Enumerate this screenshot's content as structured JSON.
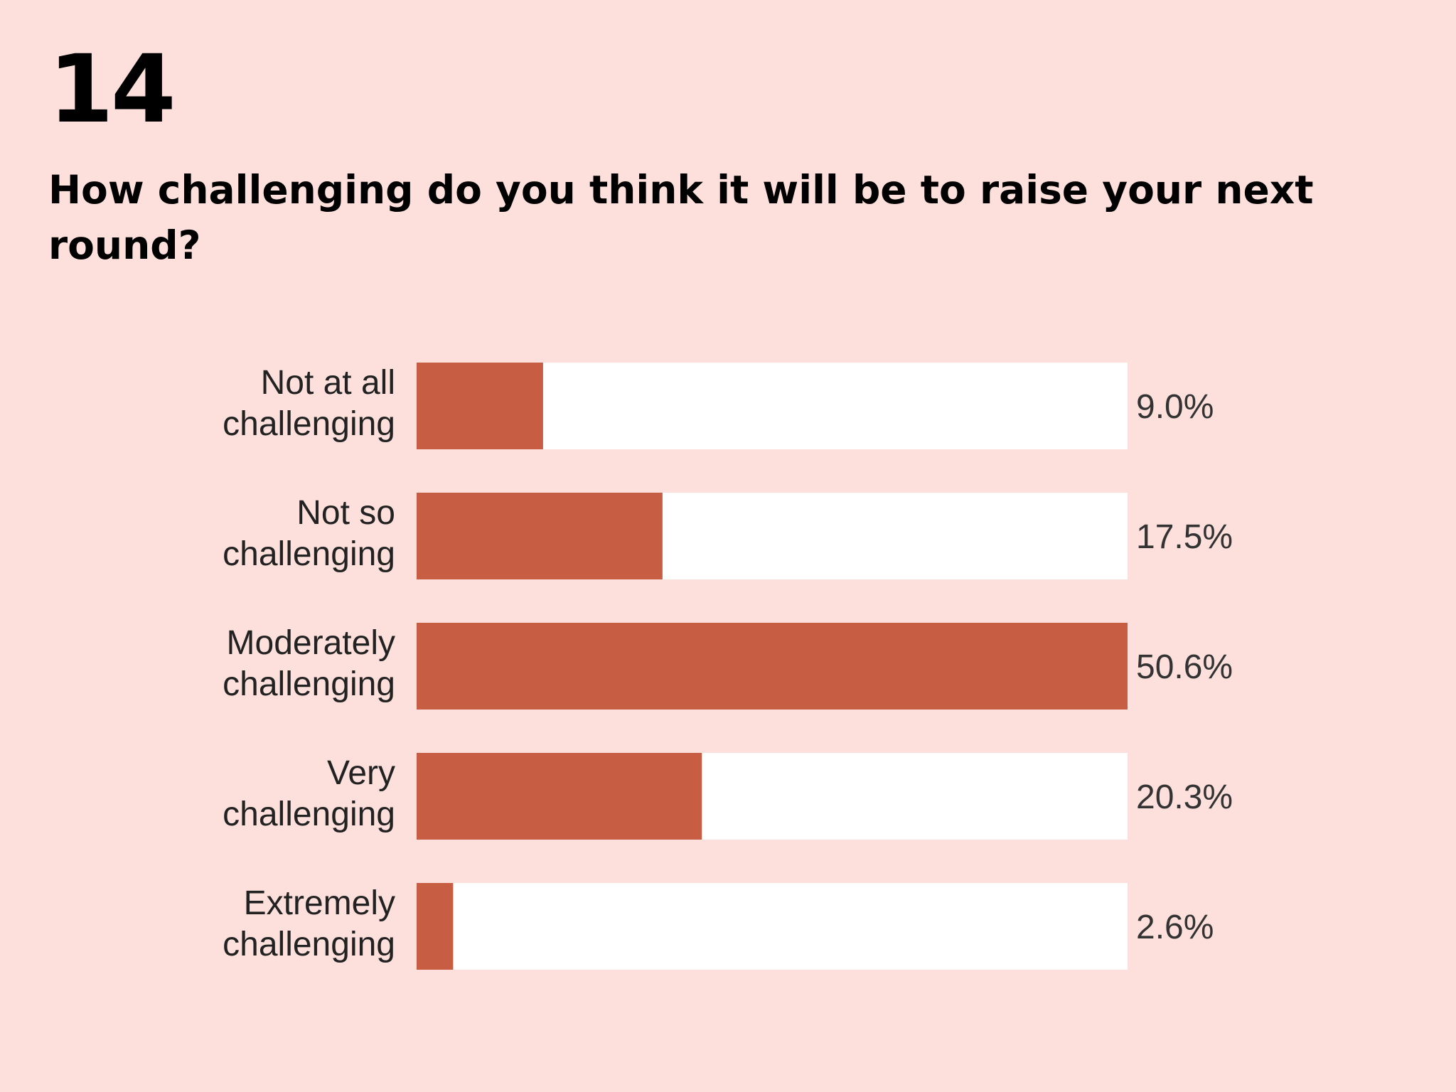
{
  "header": {
    "number": "14",
    "question": "How challenging do you think it will be to raise your next round?"
  },
  "colors": {
    "background": "#fde0db",
    "bar": "#c75d43",
    "track": "#ffffff"
  },
  "chart_data": {
    "type": "bar",
    "orientation": "horizontal",
    "title": "How challenging do you think it will be to raise your next round?",
    "categories": [
      [
        "Not at all",
        "challenging"
      ],
      [
        "Not so",
        "challenging"
      ],
      [
        "Moderately",
        "challenging"
      ],
      [
        "Very",
        "challenging"
      ],
      [
        "Extremely",
        "challenging"
      ]
    ],
    "values": [
      9.0,
      17.5,
      50.6,
      20.3,
      2.6
    ],
    "value_labels": [
      "9.0%",
      "17.5%",
      "50.6%",
      "20.3%",
      "2.6%"
    ],
    "xlim": [
      0,
      50.6
    ],
    "grid": false,
    "legend": "none"
  }
}
